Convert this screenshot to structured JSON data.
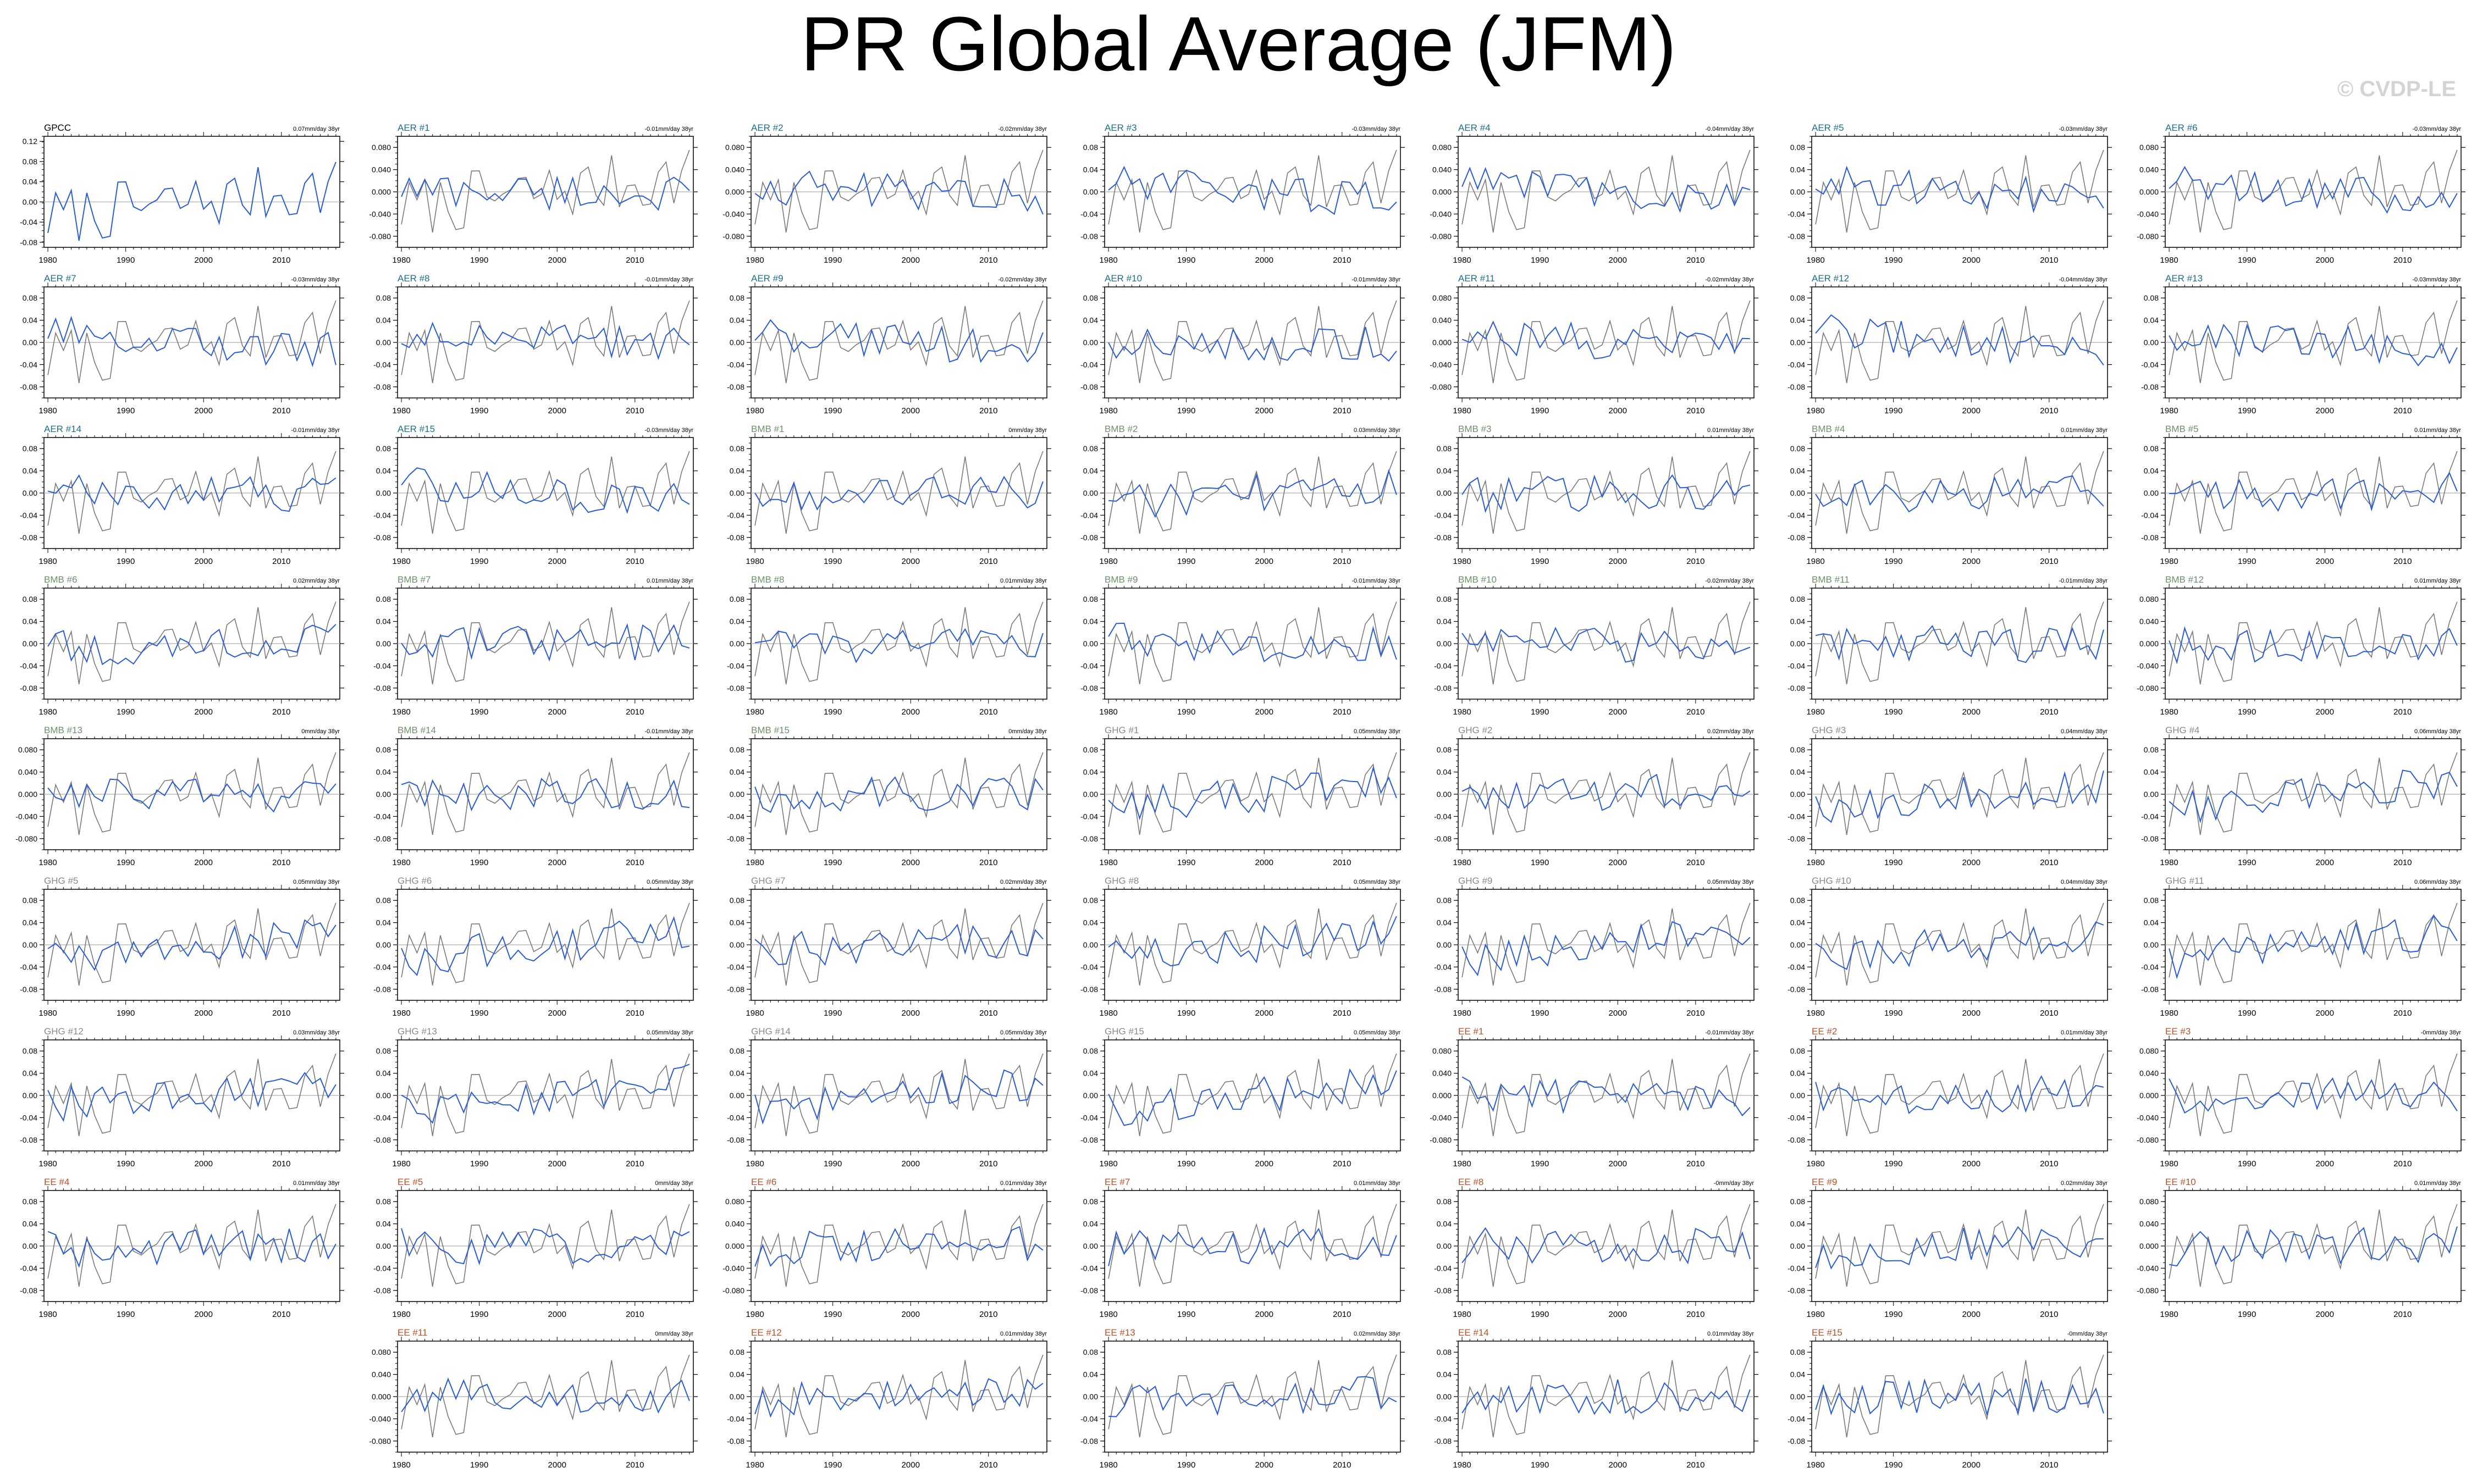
{
  "title": "PR Global Average (JFM)",
  "watermark": "© CVDP-LE",
  "colors": {
    "obs": "#000000",
    "model": "#2a5cd6",
    "obs_overlay": "#7a7a7a",
    "zero_line": "#bbbbbb",
    "AER": "#1f6f8b",
    "BMB": "#6f8f6f",
    "GHG": "#8a8a8a",
    "EE": "#b5532a",
    "GPCC": "#000000"
  },
  "x_ticks": [
    1980,
    1990,
    2000,
    2010
  ],
  "chart_data": [
    {
      "type": "line",
      "label": "GPCC",
      "group": "GPCC",
      "trend": "0.07mm/day 38yr",
      "yticks": [
        "0.12",
        "0.08",
        "0.04",
        "0.00",
        "-0.04",
        "-0.08"
      ],
      "ylim": [
        -0.09,
        0.13
      ]
    },
    {
      "type": "line",
      "label": "AER #1",
      "group": "AER",
      "trend": "-0.01mm/day 38yr",
      "yticks": [
        "0.080",
        "0.040",
        "0.000",
        "-0.040",
        "-0.080"
      ],
      "ylim": [
        -0.1,
        0.1
      ]
    },
    {
      "type": "line",
      "label": "AER #2",
      "group": "AER",
      "trend": "-0.02mm/day 38yr",
      "yticks": [
        "0.080",
        "0.040",
        "0.000",
        "-0.040",
        "-0.080"
      ],
      "ylim": [
        -0.1,
        0.1
      ]
    },
    {
      "type": "line",
      "label": "AER #3",
      "group": "AER",
      "trend": "-0.03mm/day 38yr",
      "yticks": [
        "0.08",
        "0.04",
        "0.00",
        "-0.04",
        "-0.08"
      ],
      "ylim": [
        -0.1,
        0.1
      ]
    },
    {
      "type": "line",
      "label": "AER #4",
      "group": "AER",
      "trend": "-0.04mm/day 38yr",
      "yticks": [
        "0.080",
        "0.040",
        "0.000",
        "-0.040",
        "-0.080"
      ],
      "ylim": [
        -0.1,
        0.1
      ]
    },
    {
      "type": "line",
      "label": "AER #5",
      "group": "AER",
      "trend": "-0.03mm/day 38yr",
      "yticks": [
        "0.08",
        "0.04",
        "0.00",
        "-0.04",
        "-0.08"
      ],
      "ylim": [
        -0.1,
        0.1
      ]
    },
    {
      "type": "line",
      "label": "AER #6",
      "group": "AER",
      "trend": "-0.03mm/day 38yr",
      "yticks": [
        "0.080",
        "0.040",
        "0.000",
        "-0.040",
        "-0.080"
      ],
      "ylim": [
        -0.1,
        0.1
      ]
    },
    {
      "type": "line",
      "label": "AER #7",
      "group": "AER",
      "trend": "-0.03mm/day 38yr",
      "yticks": [
        "0.08",
        "0.04",
        "0.00",
        "-0.04",
        "-0.08"
      ],
      "ylim": [
        -0.1,
        0.1
      ]
    },
    {
      "type": "line",
      "label": "AER #8",
      "group": "AER",
      "trend": "-0.01mm/day 38yr",
      "yticks": [
        "0.08",
        "0.04",
        "0.00",
        "-0.04",
        "-0.08"
      ],
      "ylim": [
        -0.1,
        0.1
      ]
    },
    {
      "type": "line",
      "label": "AER #9",
      "group": "AER",
      "trend": "-0.02mm/day 38yr",
      "yticks": [
        "0.08",
        "0.04",
        "0.00",
        "-0.04",
        "-0.08"
      ],
      "ylim": [
        -0.1,
        0.1
      ]
    },
    {
      "type": "line",
      "label": "AER #10",
      "group": "AER",
      "trend": "-0.01mm/day 38yr",
      "yticks": [
        "0.08",
        "0.04",
        "0.00",
        "-0.04",
        "-0.08"
      ],
      "ylim": [
        -0.1,
        0.1
      ]
    },
    {
      "type": "line",
      "label": "AER #11",
      "group": "AER",
      "trend": "-0.02mm/day 38yr",
      "yticks": [
        "0.080",
        "0.040",
        "0.000",
        "-0.040",
        "-0.080"
      ],
      "ylim": [
        -0.1,
        0.1
      ]
    },
    {
      "type": "line",
      "label": "AER #12",
      "group": "AER",
      "trend": "-0.04mm/day 38yr",
      "yticks": [
        "0.08",
        "0.04",
        "0.00",
        "-0.04",
        "-0.08"
      ],
      "ylim": [
        -0.1,
        0.1
      ]
    },
    {
      "type": "line",
      "label": "AER #13",
      "group": "AER",
      "trend": "-0.03mm/day 38yr",
      "yticks": [
        "0.08",
        "0.04",
        "0.00",
        "-0.04",
        "-0.08"
      ],
      "ylim": [
        -0.1,
        0.1
      ]
    },
    {
      "type": "line",
      "label": "AER #14",
      "group": "AER",
      "trend": "-0.01mm/day 38yr",
      "yticks": [
        "0.08",
        "0.04",
        "0.00",
        "-0.04",
        "-0.08"
      ],
      "ylim": [
        -0.1,
        0.1
      ]
    },
    {
      "type": "line",
      "label": "AER #15",
      "group": "AER",
      "trend": "-0.03mm/day 38yr",
      "yticks": [
        "0.08",
        "0.04",
        "0.00",
        "-0.04",
        "-0.08"
      ],
      "ylim": [
        -0.1,
        0.1
      ]
    },
    {
      "type": "line",
      "label": "BMB #1",
      "group": "BMB",
      "trend": "0mm/day 38yr",
      "yticks": [
        "0.08",
        "0.04",
        "0.00",
        "-0.04",
        "-0.08"
      ],
      "ylim": [
        -0.1,
        0.1
      ]
    },
    {
      "type": "line",
      "label": "BMB #2",
      "group": "BMB",
      "trend": "0.03mm/day 38yr",
      "yticks": [
        "0.08",
        "0.04",
        "0.00",
        "-0.04",
        "-0.08"
      ],
      "ylim": [
        -0.1,
        0.1
      ]
    },
    {
      "type": "line",
      "label": "BMB #3",
      "group": "BMB",
      "trend": "0.01mm/day 38yr",
      "yticks": [
        "0.08",
        "0.04",
        "0.00",
        "-0.04",
        "-0.08"
      ],
      "ylim": [
        -0.1,
        0.1
      ]
    },
    {
      "type": "line",
      "label": "BMB #4",
      "group": "BMB",
      "trend": "0.01mm/day 38yr",
      "yticks": [
        "0.08",
        "0.04",
        "0.00",
        "-0.04",
        "-0.08"
      ],
      "ylim": [
        -0.1,
        0.1
      ]
    },
    {
      "type": "line",
      "label": "BMB #5",
      "group": "BMB",
      "trend": "0.01mm/day 38yr",
      "yticks": [
        "0.08",
        "0.04",
        "0.00",
        "-0.04",
        "-0.08"
      ],
      "ylim": [
        -0.1,
        0.1
      ]
    },
    {
      "type": "line",
      "label": "BMB #6",
      "group": "BMB",
      "trend": "0.02mm/day 38yr",
      "yticks": [
        "0.08",
        "0.04",
        "0.00",
        "-0.04",
        "-0.08"
      ],
      "ylim": [
        -0.1,
        0.1
      ]
    },
    {
      "type": "line",
      "label": "BMB #7",
      "group": "BMB",
      "trend": "0.01mm/day 38yr",
      "yticks": [
        "0.08",
        "0.04",
        "0.00",
        "-0.04",
        "-0.08"
      ],
      "ylim": [
        -0.1,
        0.1
      ]
    },
    {
      "type": "line",
      "label": "BMB #8",
      "group": "BMB",
      "trend": "0.01mm/day 38yr",
      "yticks": [
        "0.08",
        "0.04",
        "0.00",
        "-0.04",
        "-0.08"
      ],
      "ylim": [
        -0.1,
        0.1
      ]
    },
    {
      "type": "line",
      "label": "BMB #9",
      "group": "BMB",
      "trend": "-0.01mm/day 38yr",
      "yticks": [
        "0.08",
        "0.04",
        "0.00",
        "-0.04",
        "-0.08"
      ],
      "ylim": [
        -0.1,
        0.1
      ]
    },
    {
      "type": "line",
      "label": "BMB #10",
      "group": "BMB",
      "trend": "-0.02mm/day 38yr",
      "yticks": [
        "0.08",
        "0.04",
        "0.00",
        "-0.04",
        "-0.08"
      ],
      "ylim": [
        -0.1,
        0.1
      ]
    },
    {
      "type": "line",
      "label": "BMB #11",
      "group": "BMB",
      "trend": "-0.01mm/day 38yr",
      "yticks": [
        "0.08",
        "0.04",
        "0.00",
        "-0.04",
        "-0.08"
      ],
      "ylim": [
        -0.1,
        0.1
      ]
    },
    {
      "type": "line",
      "label": "BMB #12",
      "group": "BMB",
      "trend": "0.01mm/day 38yr",
      "yticks": [
        "0.080",
        "0.040",
        "0.000",
        "-0.040",
        "-0.080"
      ],
      "ylim": [
        -0.1,
        0.1
      ]
    },
    {
      "type": "line",
      "label": "BMB #13",
      "group": "BMB",
      "trend": "0mm/day 38yr",
      "yticks": [
        "0.080",
        "0.040",
        "0.000",
        "-0.040",
        "-0.080"
      ],
      "ylim": [
        -0.1,
        0.1
      ]
    },
    {
      "type": "line",
      "label": "BMB #14",
      "group": "BMB",
      "trend": "-0.01mm/day 38yr",
      "yticks": [
        "0.08",
        "0.04",
        "0.00",
        "-0.04",
        "-0.08"
      ],
      "ylim": [
        -0.1,
        0.1
      ]
    },
    {
      "type": "line",
      "label": "BMB #15",
      "group": "BMB",
      "trend": "0mm/day 38yr",
      "yticks": [
        "0.08",
        "0.04",
        "0.00",
        "-0.04",
        "-0.08"
      ],
      "ylim": [
        -0.1,
        0.1
      ]
    },
    {
      "type": "line",
      "label": "GHG #1",
      "group": "GHG",
      "trend": "0.05mm/day 38yr",
      "yticks": [
        "0.08",
        "0.04",
        "0.00",
        "-0.04",
        "-0.08"
      ],
      "ylim": [
        -0.1,
        0.1
      ]
    },
    {
      "type": "line",
      "label": "GHG #2",
      "group": "GHG",
      "trend": "0.02mm/day 38yr",
      "yticks": [
        "0.08",
        "0.04",
        "0.00",
        "-0.04",
        "-0.08"
      ],
      "ylim": [
        -0.1,
        0.1
      ]
    },
    {
      "type": "line",
      "label": "GHG #3",
      "group": "GHG",
      "trend": "0.04mm/day 38yr",
      "yticks": [
        "0.08",
        "0.04",
        "0.00",
        "-0.04",
        "-0.08"
      ],
      "ylim": [
        -0.1,
        0.1
      ]
    },
    {
      "type": "line",
      "label": "GHG #4",
      "group": "GHG",
      "trend": "0.06mm/day 38yr",
      "yticks": [
        "0.08",
        "0.04",
        "0.00",
        "-0.04",
        "-0.08"
      ],
      "ylim": [
        -0.1,
        0.1
      ]
    },
    {
      "type": "line",
      "label": "GHG #5",
      "group": "GHG",
      "trend": "0.05mm/day 38yr",
      "yticks": [
        "0.08",
        "0.04",
        "0.00",
        "-0.04",
        "-0.08"
      ],
      "ylim": [
        -0.1,
        0.1
      ]
    },
    {
      "type": "line",
      "label": "GHG #6",
      "group": "GHG",
      "trend": "0.05mm/day 38yr",
      "yticks": [
        "0.08",
        "0.04",
        "0.00",
        "-0.04",
        "-0.08"
      ],
      "ylim": [
        -0.1,
        0.1
      ]
    },
    {
      "type": "line",
      "label": "GHG #7",
      "group": "GHG",
      "trend": "0.02mm/day 38yr",
      "yticks": [
        "0.08",
        "0.04",
        "0.00",
        "-0.04",
        "-0.08"
      ],
      "ylim": [
        -0.1,
        0.1
      ]
    },
    {
      "type": "line",
      "label": "GHG #8",
      "group": "GHG",
      "trend": "0.05mm/day 38yr",
      "yticks": [
        "0.08",
        "0.04",
        "0.00",
        "-0.04",
        "-0.08"
      ],
      "ylim": [
        -0.1,
        0.1
      ]
    },
    {
      "type": "line",
      "label": "GHG #9",
      "group": "GHG",
      "trend": "0.05mm/day 38yr",
      "yticks": [
        "0.08",
        "0.04",
        "0.00",
        "-0.04",
        "-0.08"
      ],
      "ylim": [
        -0.1,
        0.1
      ]
    },
    {
      "type": "line",
      "label": "GHG #10",
      "group": "GHG",
      "trend": "0.04mm/day 38yr",
      "yticks": [
        "0.08",
        "0.04",
        "0.00",
        "-0.04",
        "-0.08"
      ],
      "ylim": [
        -0.1,
        0.1
      ]
    },
    {
      "type": "line",
      "label": "GHG #11",
      "group": "GHG",
      "trend": "0.06mm/day 38yr",
      "yticks": [
        "0.08",
        "0.04",
        "0.00",
        "-0.04",
        "-0.08"
      ],
      "ylim": [
        -0.1,
        0.1
      ]
    },
    {
      "type": "line",
      "label": "GHG #12",
      "group": "GHG",
      "trend": "0.03mm/day 38yr",
      "yticks": [
        "0.08",
        "0.04",
        "0.00",
        "-0.04",
        "-0.08"
      ],
      "ylim": [
        -0.1,
        0.1
      ]
    },
    {
      "type": "line",
      "label": "GHG #13",
      "group": "GHG",
      "trend": "0.05mm/day 38yr",
      "yticks": [
        "0.08",
        "0.04",
        "0.00",
        "-0.04",
        "-0.08"
      ],
      "ylim": [
        -0.1,
        0.1
      ]
    },
    {
      "type": "line",
      "label": "GHG #14",
      "group": "GHG",
      "trend": "0.05mm/day 38yr",
      "yticks": [
        "0.08",
        "0.04",
        "0.00",
        "-0.04",
        "-0.08"
      ],
      "ylim": [
        -0.1,
        0.1
      ]
    },
    {
      "type": "line",
      "label": "GHG #15",
      "group": "GHG",
      "trend": "0.05mm/day 38yr",
      "yticks": [
        "0.08",
        "0.04",
        "0.00",
        "-0.04",
        "-0.08"
      ],
      "ylim": [
        -0.1,
        0.1
      ]
    },
    {
      "type": "line",
      "label": "EE #1",
      "group": "EE",
      "trend": "-0.01mm/day 38yr",
      "yticks": [
        "0.080",
        "0.040",
        "0.000",
        "-0.040",
        "-0.080"
      ],
      "ylim": [
        -0.1,
        0.1
      ]
    },
    {
      "type": "line",
      "label": "EE #2",
      "group": "EE",
      "trend": "0.01mm/day 38yr",
      "yticks": [
        "0.08",
        "0.04",
        "0.00",
        "-0.04",
        "-0.08"
      ],
      "ylim": [
        -0.1,
        0.1
      ]
    },
    {
      "type": "line",
      "label": "EE #3",
      "group": "EE",
      "trend": "-0mm/day 38yr",
      "yticks": [
        "0.080",
        "0.040",
        "0.000",
        "-0.040",
        "-0.080"
      ],
      "ylim": [
        -0.1,
        0.1
      ]
    },
    {
      "type": "line",
      "label": "EE #4",
      "group": "EE",
      "trend": "0.01mm/day 38yr",
      "yticks": [
        "0.08",
        "0.04",
        "0.00",
        "-0.04",
        "-0.08"
      ],
      "ylim": [
        -0.1,
        0.1
      ]
    },
    {
      "type": "line",
      "label": "EE #5",
      "group": "EE",
      "trend": "0mm/day 38yr",
      "yticks": [
        "0.08",
        "0.04",
        "0.00",
        "-0.04",
        "-0.08"
      ],
      "ylim": [
        -0.1,
        0.1
      ]
    },
    {
      "type": "line",
      "label": "EE #6",
      "group": "EE",
      "trend": "0.01mm/day 38yr",
      "yticks": [
        "0.080",
        "0.040",
        "0.000",
        "-0.040",
        "-0.080"
      ],
      "ylim": [
        -0.1,
        0.1
      ]
    },
    {
      "type": "line",
      "label": "EE #7",
      "group": "EE",
      "trend": "0.01mm/day 38yr",
      "yticks": [
        "0.08",
        "0.04",
        "0.00",
        "-0.04",
        "-0.08"
      ],
      "ylim": [
        -0.1,
        0.1
      ]
    },
    {
      "type": "line",
      "label": "EE #8",
      "group": "EE",
      "trend": "-0mm/day 38yr",
      "yticks": [
        "0.08",
        "0.04",
        "0.00",
        "-0.04",
        "-0.08"
      ],
      "ylim": [
        -0.1,
        0.1
      ]
    },
    {
      "type": "line",
      "label": "EE #9",
      "group": "EE",
      "trend": "0.02mm/day 38yr",
      "yticks": [
        "0.08",
        "0.04",
        "0.00",
        "-0.04",
        "-0.08"
      ],
      "ylim": [
        -0.1,
        0.1
      ]
    },
    {
      "type": "line",
      "label": "EE #10",
      "group": "EE",
      "trend": "0.01mm/day 38yr",
      "yticks": [
        "0.080",
        "0.040",
        "0.000",
        "-0.040",
        "-0.080"
      ],
      "ylim": [
        -0.1,
        0.1
      ]
    },
    {
      "type": "line",
      "label": "EE #11",
      "group": "EE",
      "trend": "0mm/day 38yr",
      "yticks": [
        "0.080",
        "0.040",
        "0.000",
        "-0.040",
        "-0.080"
      ],
      "ylim": [
        -0.1,
        0.1
      ]
    },
    {
      "type": "line",
      "label": "EE #12",
      "group": "EE",
      "trend": "0.01mm/day 38yr",
      "yticks": [
        "0.08",
        "0.04",
        "0.00",
        "-0.04",
        "-0.08"
      ],
      "ylim": [
        -0.1,
        0.1
      ]
    },
    {
      "type": "line",
      "label": "EE #13",
      "group": "EE",
      "trend": "0.02mm/day 38yr",
      "yticks": [
        "0.08",
        "0.04",
        "0.00",
        "-0.04",
        "-0.08"
      ],
      "ylim": [
        -0.1,
        0.1
      ]
    },
    {
      "type": "line",
      "label": "EE #14",
      "group": "EE",
      "trend": "0.01mm/day 38yr",
      "yticks": [
        "0.08",
        "0.04",
        "0.00",
        "-0.04",
        "-0.08"
      ],
      "ylim": [
        -0.1,
        0.1
      ]
    },
    {
      "type": "line",
      "label": "EE #15",
      "group": "EE",
      "trend": "-0mm/day 38yr",
      "yticks": [
        "0.08",
        "0.04",
        "0.00",
        "-0.04",
        "-0.08"
      ],
      "ylim": [
        -0.1,
        0.1
      ]
    }
  ]
}
